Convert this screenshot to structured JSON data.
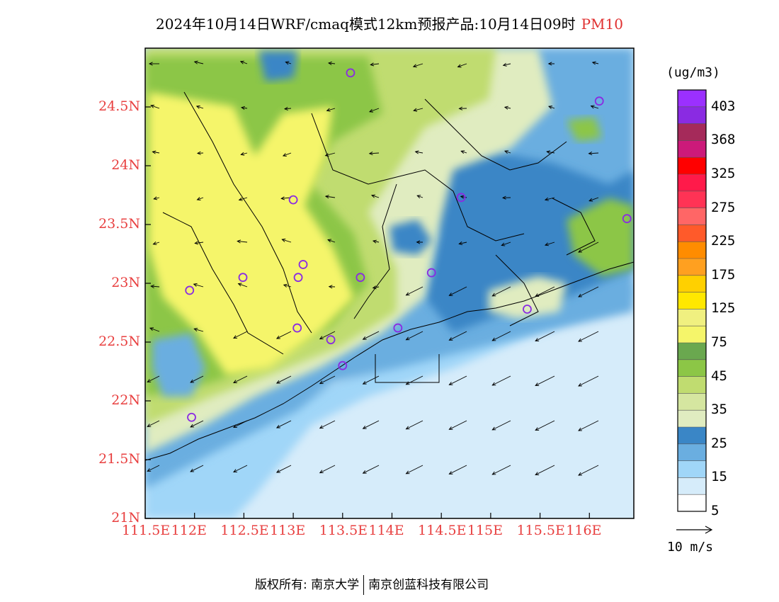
{
  "title": {
    "main": "2024年10月14日WRF/cmaq模式12km预报产品:10月14日09时",
    "pollutant": "PM10",
    "pollutant_color": "#e03030"
  },
  "map": {
    "lat_labels": [
      "24.5N",
      "24N",
      "23.5N",
      "23N",
      "22.5N",
      "22N",
      "21.5N",
      "21N"
    ],
    "lon_labels": [
      "111.5E",
      "112E",
      "112.5E",
      "113E",
      "113.5E",
      "114E",
      "114.5E",
      "115E",
      "115.5E",
      "116E"
    ],
    "lat_values": [
      24.5,
      24.0,
      23.5,
      23.0,
      22.5,
      22.0,
      21.5,
      21.0
    ],
    "lon_values": [
      111.5,
      112.0,
      112.5,
      113.0,
      113.5,
      114.0,
      114.5,
      115.0,
      115.5,
      116.0
    ],
    "label_color": "#e84040",
    "station_color": "#8a2be2"
  },
  "legend": {
    "unit": "(ug/m3)",
    "labels": [
      "403",
      "368",
      "325",
      "275",
      "225",
      "175",
      "125",
      "75",
      "45",
      "35",
      "25",
      "15",
      "5"
    ],
    "colors": [
      "#9b30ff",
      "#8a2be2",
      "#a52a5a",
      "#cc1a7a",
      "#ff0000",
      "#ff1a4a",
      "#ff3355",
      "#ff6666",
      "#ff5a2a",
      "#ff8c00",
      "#ffa020",
      "#ffd000",
      "#ffe800",
      "#f0f080",
      "#f5f56a",
      "#6aa84f",
      "#8cc646",
      "#c0dc70",
      "#d5e6a0",
      "#e0ecc0",
      "#3a86c6",
      "#6aaee0",
      "#a0d6f8",
      "#d6ecfa",
      "#ffffff"
    ]
  },
  "wind_scale": {
    "label": "10 m/s"
  },
  "footer": {
    "copyright_left": "版权所有: 南京大学",
    "copyright_right": "南京创蓝科技有限公司"
  }
}
